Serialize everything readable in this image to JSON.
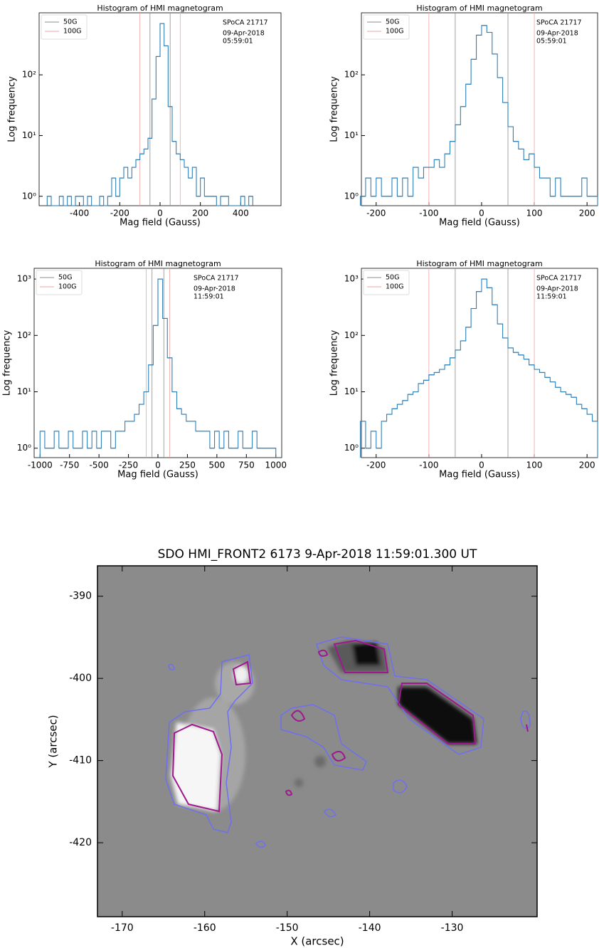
{
  "chart_data": [
    {
      "type": "histogram",
      "title": "Histogram of HMI magnetogram",
      "xlabel": "Mag field (Gauss)",
      "ylabel": "Log frequency",
      "log_y": true,
      "color": "#2f7fb8",
      "bins": [
        -560,
        -540,
        -520,
        -500,
        -480,
        -460,
        -440,
        -420,
        -400,
        -380,
        -360,
        -340,
        -320,
        -300,
        -280,
        -260,
        -240,
        -220,
        -200,
        -180,
        -160,
        -140,
        -120,
        -100,
        -80,
        -60,
        -40,
        -20,
        0,
        20,
        40,
        60,
        80,
        100,
        120,
        140,
        160,
        180,
        200,
        220,
        240,
        260,
        280,
        300,
        320,
        340,
        360,
        380,
        400,
        420,
        440,
        460
      ],
      "counts": [
        1,
        0,
        0,
        1,
        0,
        1,
        0,
        1,
        1,
        0,
        1,
        0,
        0,
        1,
        0,
        1,
        2,
        1,
        2,
        3,
        2,
        3,
        4,
        5,
        6,
        9,
        40,
        200,
        700,
        300,
        30,
        8,
        5,
        4,
        3,
        2,
        3,
        1,
        2,
        1,
        1,
        1,
        0,
        1,
        1,
        0,
        0,
        0,
        1,
        0,
        1
      ],
      "xlim": [
        -600,
        600
      ],
      "xticks": [
        -400,
        -200,
        0,
        200,
        400
      ],
      "ylim": [
        0.7,
        1050
      ],
      "yticks": [
        {
          "value": 1,
          "label": "10⁰"
        },
        {
          "value": 10,
          "label": "10¹"
        },
        {
          "value": 100,
          "label": "10²"
        }
      ],
      "reference_lines": [
        {
          "name": "50G",
          "color": "#8c8c8c",
          "values": [
            -50,
            50
          ]
        },
        {
          "name": "100G",
          "color": "#f2a3a3",
          "values": [
            -100,
            100
          ]
        }
      ],
      "annotations": [
        "SPoCA 21717",
        "09-Apr-2018",
        "05:59:01"
      ]
    },
    {
      "type": "histogram",
      "title": "Histogram of HMI magnetogram",
      "xlabel": "Mag field (Gauss)",
      "ylabel": "Log frequency",
      "log_y": true,
      "color": "#2f7fb8",
      "bins": [
        -230,
        -220,
        -210,
        -200,
        -190,
        -180,
        -170,
        -160,
        -150,
        -140,
        -130,
        -120,
        -110,
        -100,
        -90,
        -80,
        -70,
        -60,
        -50,
        -40,
        -30,
        -20,
        -10,
        0,
        10,
        20,
        30,
        40,
        50,
        60,
        70,
        80,
        90,
        100,
        110,
        120,
        130,
        140,
        150,
        160,
        170,
        180,
        190,
        200,
        210,
        220
      ],
      "counts": [
        1,
        2,
        1,
        2,
        1,
        1,
        2,
        1,
        2,
        1,
        3,
        2,
        3,
        3,
        4,
        3,
        5,
        8,
        15,
        30,
        70,
        180,
        450,
        650,
        500,
        220,
        90,
        35,
        14,
        8,
        6,
        4,
        5,
        3,
        2,
        2,
        1,
        2,
        1,
        1,
        1,
        1,
        2,
        1,
        1
      ],
      "xlim": [
        -228,
        220
      ],
      "xticks": [
        -200,
        -100,
        0,
        100,
        200
      ],
      "ylim": [
        0.7,
        1050
      ],
      "yticks": [
        {
          "value": 1,
          "label": "10⁰"
        },
        {
          "value": 10,
          "label": "10¹"
        },
        {
          "value": 100,
          "label": "10²"
        }
      ],
      "reference_lines": [
        {
          "name": "50G",
          "color": "#8c8c8c",
          "values": [
            -50,
            50
          ]
        },
        {
          "name": "100G",
          "color": "#f2a3a3",
          "values": [
            -100,
            100
          ]
        }
      ],
      "annotations": [
        "SPoCA 21717",
        "09-Apr-2018",
        "05:59:01"
      ]
    },
    {
      "type": "histogram",
      "title": "Histogram of HMI magnetogram",
      "xlabel": "Mag field (Gauss)",
      "ylabel": "Log frequency",
      "log_y": true,
      "color": "#2f7fb8",
      "bins": [
        -1000,
        -960,
        -920,
        -880,
        -840,
        -800,
        -760,
        -720,
        -680,
        -640,
        -600,
        -560,
        -520,
        -480,
        -440,
        -400,
        -360,
        -320,
        -280,
        -240,
        -200,
        -160,
        -120,
        -80,
        -40,
        0,
        40,
        80,
        120,
        160,
        200,
        240,
        280,
        320,
        360,
        400,
        440,
        480,
        520,
        560,
        600,
        640,
        680,
        720,
        760,
        800,
        840,
        880,
        920,
        960,
        1000
      ],
      "counts": [
        2,
        1,
        1,
        2,
        1,
        1,
        2,
        1,
        1,
        2,
        1,
        2,
        1,
        2,
        2,
        1,
        2,
        2,
        3,
        3,
        4,
        6,
        10,
        30,
        150,
        1000,
        200,
        40,
        10,
        5,
        4,
        3,
        3,
        2,
        2,
        2,
        1,
        2,
        1,
        2,
        1,
        1,
        2,
        1,
        1,
        2,
        1,
        1,
        1,
        1
      ],
      "xlim": [
        -1050,
        1050
      ],
      "xticks": [
        -1000,
        -750,
        -500,
        -250,
        0,
        250,
        500,
        750,
        1000
      ],
      "ylim": [
        0.68,
        1550
      ],
      "yticks": [
        {
          "value": 1,
          "label": "10⁰"
        },
        {
          "value": 10,
          "label": "10¹"
        },
        {
          "value": 100,
          "label": "10²"
        },
        {
          "value": 1000,
          "label": "10³"
        }
      ],
      "reference_lines": [
        {
          "name": "50G",
          "color": "#8c8c8c",
          "values": [
            -50,
            50
          ]
        },
        {
          "name": "100G",
          "color": "#f2a3a3",
          "values": [
            -100,
            100
          ]
        }
      ],
      "annotations": [
        "SPoCA 21717",
        "09-Apr-2018",
        "11:59:01"
      ]
    },
    {
      "type": "histogram",
      "title": "Histogram of HMI magnetogram",
      "xlabel": "Mag field (Gauss)",
      "ylabel": "Log frequency",
      "log_y": true,
      "color": "#2f7fb8",
      "bins": [
        -230,
        -220,
        -210,
        -200,
        -190,
        -180,
        -170,
        -160,
        -150,
        -140,
        -130,
        -120,
        -110,
        -100,
        -90,
        -80,
        -70,
        -60,
        -50,
        -40,
        -30,
        -20,
        -10,
        0,
        10,
        20,
        30,
        40,
        50,
        60,
        70,
        80,
        90,
        100,
        110,
        120,
        130,
        140,
        150,
        160,
        170,
        180,
        190,
        200,
        210,
        220
      ],
      "counts": [
        3,
        1,
        2,
        1,
        3,
        4,
        5,
        6,
        7,
        9,
        10,
        14,
        16,
        20,
        22,
        25,
        30,
        40,
        55,
        80,
        140,
        300,
        600,
        1000,
        700,
        350,
        160,
        90,
        60,
        50,
        45,
        38,
        30,
        25,
        22,
        18,
        15,
        12,
        10,
        9,
        8,
        6,
        5,
        4,
        3
      ],
      "xlim": [
        -228,
        220
      ],
      "xticks": [
        -200,
        -100,
        0,
        100,
        200
      ],
      "ylim": [
        0.68,
        1550
      ],
      "yticks": [
        {
          "value": 1,
          "label": "10⁰"
        },
        {
          "value": 10,
          "label": "10¹"
        },
        {
          "value": 100,
          "label": "10²"
        },
        {
          "value": 1000,
          "label": "10³"
        }
      ],
      "reference_lines": [
        {
          "name": "50G",
          "color": "#8c8c8c",
          "values": [
            -50,
            50
          ]
        },
        {
          "name": "100G",
          "color": "#f2a3a3",
          "values": [
            -100,
            100
          ]
        }
      ],
      "annotations": [
        "SPoCA 21717",
        "09-Apr-2018",
        "11:59:01"
      ]
    },
    {
      "type": "image",
      "title": "SDO HMI_FRONT2 6173   9-Apr-2018 11:59:01.300 UT",
      "xlabel": "X (arcsec)",
      "ylabel": "Y (arcsec)",
      "xlim": [
        -173,
        -119.7
      ],
      "xticks": [
        -170,
        -160,
        -150,
        -140,
        -130
      ],
      "ylim": [
        -429,
        -386.3
      ],
      "yticks": [
        -390,
        -400,
        -410,
        -420
      ]
    }
  ]
}
